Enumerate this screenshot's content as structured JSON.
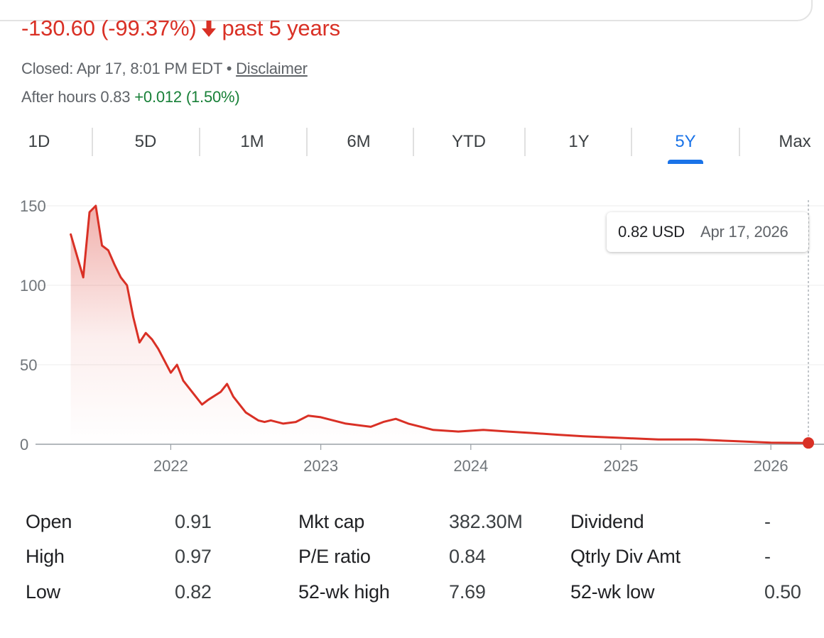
{
  "header": {
    "change": "-130.60 (-99.37%)",
    "arrow_icon": "arrow-down-icon",
    "period": "past 5 years",
    "closed_text": "Closed: Apr 17, 8:01 PM EDT",
    "separator": " • ",
    "disclaimer": "Disclaimer",
    "after_hours_label": "After hours 0.83",
    "after_hours_change": "+0.012 (1.50%)",
    "colors": {
      "negative": "#d93025",
      "positive": "#188038",
      "accent": "#1a73e8"
    }
  },
  "tabs": [
    {
      "label": "1D",
      "active": false
    },
    {
      "label": "5D",
      "active": false
    },
    {
      "label": "1M",
      "active": false
    },
    {
      "label": "6M",
      "active": false
    },
    {
      "label": "YTD",
      "active": false
    },
    {
      "label": "1Y",
      "active": false
    },
    {
      "label": "5Y",
      "active": true
    },
    {
      "label": "Max",
      "active": false
    }
  ],
  "tooltip": {
    "price": "0.82 USD",
    "date": "Apr 17, 2026"
  },
  "chart_data": {
    "type": "area",
    "x_labels": [
      "2022",
      "2023",
      "2024",
      "2025",
      "2026"
    ],
    "y_ticks": [
      0,
      50,
      100,
      150
    ],
    "ylim": [
      0,
      150
    ],
    "xlim": [
      "2021-04",
      "2026-04"
    ],
    "grid": true,
    "line_color": "#d93025",
    "series": [
      {
        "x": [
          "2021-05",
          "2021-06",
          "2021-06",
          "2021-07",
          "2021-07",
          "2021-08",
          "2021-08",
          "2021-09",
          "2021-09",
          "2021-10",
          "2021-10",
          "2021-11",
          "2021-11",
          "2021-12",
          "2022-01",
          "2022-01",
          "2022-02",
          "2022-03",
          "2022-03",
          "2022-04",
          "2022-05",
          "2022-05",
          "2022-06",
          "2022-07",
          "2022-08",
          "2022-08",
          "2022-09",
          "2022-10",
          "2022-11",
          "2022-12",
          "2023-01",
          "2023-02",
          "2023-03",
          "2023-05",
          "2023-06",
          "2023-07",
          "2023-08",
          "2023-10",
          "2023-12",
          "2024-02",
          "2024-04",
          "2024-06",
          "2024-08",
          "2024-10",
          "2025-01",
          "2025-04",
          "2025-07",
          "2025-10",
          "2026-01",
          "2026-04"
        ],
        "values": [
          132,
          105,
          146,
          150,
          125,
          122,
          113,
          105,
          100,
          80,
          64,
          70,
          66,
          60,
          45,
          50,
          40,
          30,
          25,
          28,
          33,
          38,
          30,
          20,
          15,
          14,
          15,
          13,
          14,
          18,
          17,
          15,
          13,
          11,
          14,
          16,
          13,
          9,
          8,
          9,
          8,
          7,
          6,
          5,
          4,
          3,
          3,
          2,
          1,
          0.82
        ]
      }
    ]
  },
  "stats": [
    [
      "Open",
      "0.91",
      "Mkt cap",
      "382.30M",
      "Dividend",
      "-"
    ],
    [
      "High",
      "0.97",
      "P/E ratio",
      "0.84",
      "Qtrly Div Amt",
      "-"
    ],
    [
      "Low",
      "0.82",
      "52-wk high",
      "7.69",
      "52-wk low",
      "0.50"
    ]
  ]
}
